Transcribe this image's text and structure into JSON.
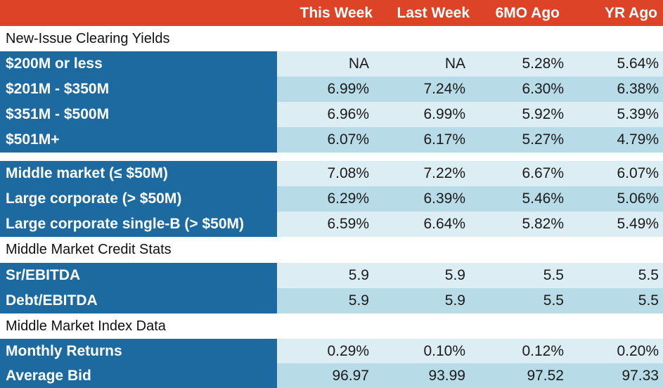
{
  "header": {
    "columns": [
      "This Week",
      "Last Week",
      "6MO Ago",
      "YR Ago"
    ]
  },
  "sections": {
    "new_issue": "New-Issue Clearing Yields",
    "credit_stats": "Middle Market Credit Stats",
    "index_data": "Middle Market Index Data"
  },
  "rows": [
    {
      "label": "$200M or less",
      "values": [
        "NA",
        "NA",
        "5.28%",
        "5.64%"
      ]
    },
    {
      "label": "$201M - $350M",
      "values": [
        "6.99%",
        "7.24%",
        "6.30%",
        "6.38%"
      ]
    },
    {
      "label": "$351M - $500M",
      "values": [
        "6.96%",
        "6.99%",
        "5.92%",
        "5.39%"
      ]
    },
    {
      "label": "$501M+",
      "values": [
        "6.07%",
        "6.17%",
        "5.27%",
        "4.79%"
      ]
    },
    {
      "label": "Middle market (≤ $50M)",
      "values": [
        "7.08%",
        "7.22%",
        "6.67%",
        "6.07%"
      ]
    },
    {
      "label": "Large corporate (> $50M)",
      "values": [
        "6.29%",
        "6.39%",
        "5.46%",
        "5.06%"
      ]
    },
    {
      "label": "Large corporate single-B (> $50M)",
      "values": [
        "6.59%",
        "6.64%",
        "5.82%",
        "5.49%"
      ]
    },
    {
      "label": "Sr/EBITDA",
      "values": [
        "5.9",
        "5.9",
        "5.5",
        "5.5"
      ]
    },
    {
      "label": "Debt/EBITDA",
      "values": [
        "5.9",
        "5.9",
        "5.5",
        "5.5"
      ]
    },
    {
      "label": "Monthly Returns",
      "values": [
        "0.29%",
        "0.10%",
        "0.12%",
        "0.20%"
      ]
    },
    {
      "label": "Average Bid",
      "values": [
        "96.97",
        "93.99",
        "97.52",
        "97.33"
      ]
    }
  ],
  "colors": {
    "header_bg": "#dc4327",
    "label_bg": "#1c6aa0",
    "row_light": "#dcedf4",
    "row_mid": "#b8dbe8"
  }
}
